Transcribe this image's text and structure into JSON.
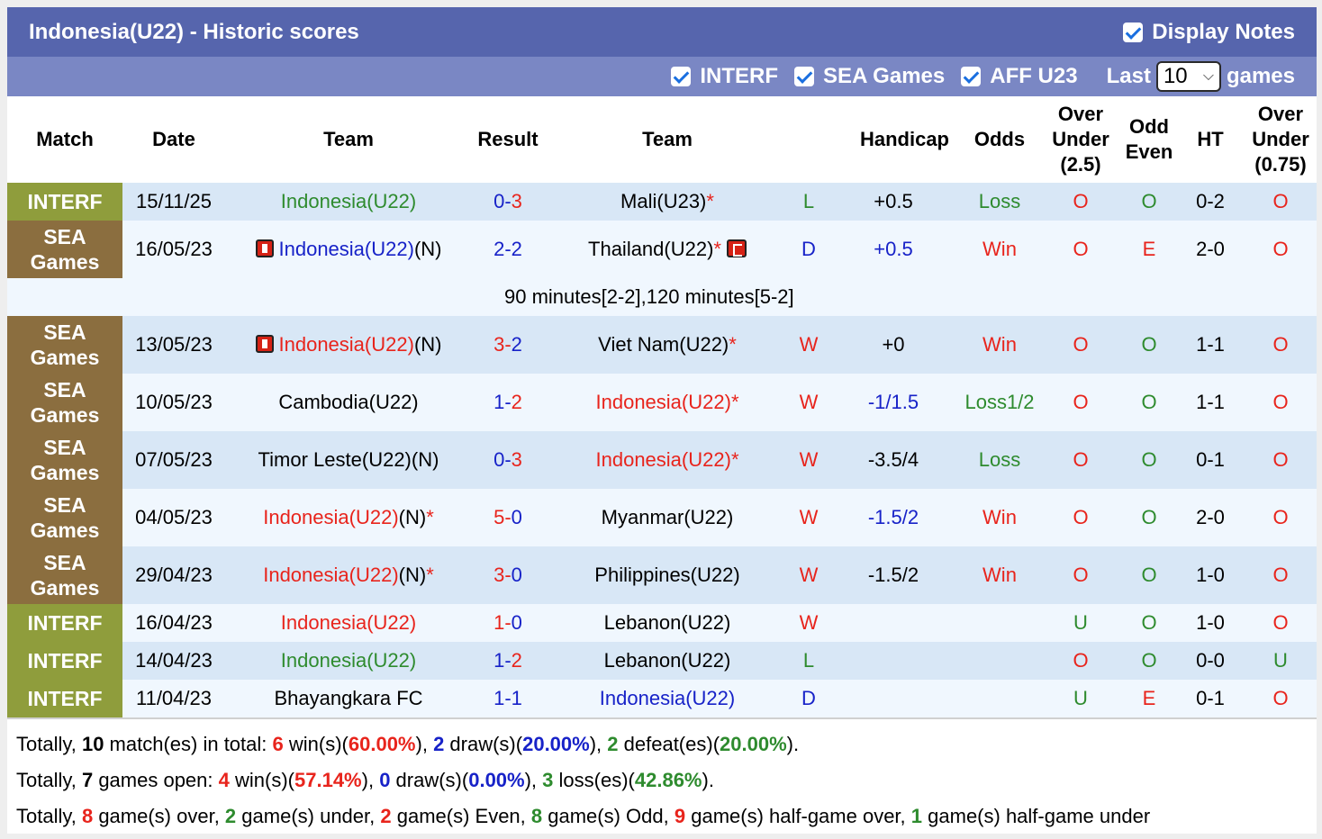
{
  "title": "Indonesia(U22) - Historic scores",
  "display_notes_label": "Display Notes",
  "filters": [
    {
      "label": "INTERF",
      "checked": true
    },
    {
      "label": "SEA Games",
      "checked": true
    },
    {
      "label": "AFF U23",
      "checked": true
    }
  ],
  "last_label": "Last",
  "last_value": "10",
  "games_label": "games",
  "headers": {
    "match": "Match",
    "date": "Date",
    "team1": "Team",
    "result": "Result",
    "team2": "Team",
    "handicap": "Handicap",
    "odds": "Odds",
    "ou1": "Over",
    "ou2": "Under",
    "ou3": "(2.5)",
    "oe1": "Odd",
    "oe2": "Even",
    "ht": "HT",
    "ou75a": "Over",
    "ou75b": "Under",
    "ou75c": "(0.75)"
  },
  "rows": [
    {
      "m1": "INTERF",
      "m2": "",
      "date": "15/11/25",
      "home": "Indonesia(U22)",
      "home_suffix": "",
      "home_star": "",
      "home_flag": false,
      "s1": "0",
      "s2": "3",
      "away": "Mali(U23)",
      "away_suffix": "",
      "away_star": "*",
      "away_flag": false,
      "wl": "L",
      "hcp": "+0.5",
      "odds": "Loss",
      "ou": "O",
      "oe": "O",
      "ht": "0-2",
      "ou75": "O"
    },
    {
      "m1": "SEA",
      "m2": "Games",
      "date": "16/05/23",
      "home": "Indonesia(U22)",
      "home_suffix": "(N)",
      "home_star": "",
      "home_flag": true,
      "s1": "2",
      "s2": "2",
      "away": "Thailand(U22)",
      "away_suffix": "",
      "away_star": "*",
      "away_flag": true,
      "wl": "D",
      "hcp": "+0.5",
      "odds": "Win",
      "ou": "O",
      "oe": "E",
      "ht": "2-0",
      "ou75": "O"
    },
    {
      "m1": "SEA",
      "m2": "Games",
      "date": "13/05/23",
      "home": "Indonesia(U22)",
      "home_suffix": "(N)",
      "home_star": "",
      "home_flag": true,
      "s1": "3",
      "s2": "2",
      "away": "Viet Nam(U22)",
      "away_suffix": "",
      "away_star": "*",
      "away_flag": false,
      "wl": "W",
      "hcp": "+0",
      "odds": "Win",
      "ou": "O",
      "oe": "O",
      "ht": "1-1",
      "ou75": "O"
    },
    {
      "m1": "SEA",
      "m2": "Games",
      "date": "10/05/23",
      "home": "Cambodia(U22)",
      "home_suffix": "",
      "home_star": "",
      "home_flag": false,
      "s1": "1",
      "s2": "2",
      "away": "Indonesia(U22)",
      "away_suffix": "",
      "away_star": "*",
      "away_flag": false,
      "wl": "W",
      "hcp": "-1/1.5",
      "odds": "Loss1/2",
      "ou": "O",
      "oe": "O",
      "ht": "1-1",
      "ou75": "O"
    },
    {
      "m1": "SEA",
      "m2": "Games",
      "date": "07/05/23",
      "home": "Timor Leste(U22)",
      "home_suffix": "(N)",
      "home_star": "",
      "home_flag": false,
      "s1": "0",
      "s2": "3",
      "away": "Indonesia(U22)",
      "away_suffix": "",
      "away_star": "*",
      "away_flag": false,
      "wl": "W",
      "hcp": "-3.5/4",
      "odds": "Loss",
      "ou": "O",
      "oe": "O",
      "ht": "0-1",
      "ou75": "O"
    },
    {
      "m1": "SEA",
      "m2": "Games",
      "date": "04/05/23",
      "home": "Indonesia(U22)",
      "home_suffix": "(N)",
      "home_star": "*",
      "home_flag": false,
      "s1": "5",
      "s2": "0",
      "away": "Myanmar(U22)",
      "away_suffix": "",
      "away_star": "",
      "away_flag": false,
      "wl": "W",
      "hcp": "-1.5/2",
      "odds": "Win",
      "ou": "O",
      "oe": "O",
      "ht": "2-0",
      "ou75": "O"
    },
    {
      "m1": "SEA",
      "m2": "Games",
      "date": "29/04/23",
      "home": "Indonesia(U22)",
      "home_suffix": "(N)",
      "home_star": "*",
      "home_flag": false,
      "s1": "3",
      "s2": "0",
      "away": "Philippines(U22)",
      "away_suffix": "",
      "away_star": "",
      "away_flag": false,
      "wl": "W",
      "hcp": "-1.5/2",
      "odds": "Win",
      "ou": "O",
      "oe": "O",
      "ht": "1-0",
      "ou75": "O"
    },
    {
      "m1": "INTERF",
      "m2": "",
      "date": "16/04/23",
      "home": "Indonesia(U22)",
      "home_suffix": "",
      "home_star": "",
      "home_flag": false,
      "s1": "1",
      "s2": "0",
      "away": "Lebanon(U22)",
      "away_suffix": "",
      "away_star": "",
      "away_flag": false,
      "wl": "W",
      "hcp": "",
      "odds": "",
      "ou": "U",
      "oe": "O",
      "ht": "1-0",
      "ou75": "O"
    },
    {
      "m1": "INTERF",
      "m2": "",
      "date": "14/04/23",
      "home": "Indonesia(U22)",
      "home_suffix": "",
      "home_star": "",
      "home_flag": false,
      "s1": "1",
      "s2": "2",
      "away": "Lebanon(U22)",
      "away_suffix": "",
      "away_star": "",
      "away_flag": false,
      "wl": "L",
      "hcp": "",
      "odds": "",
      "ou": "O",
      "oe": "O",
      "ht": "0-0",
      "ou75": "U"
    },
    {
      "m1": "INTERF",
      "m2": "",
      "date": "11/04/23",
      "home": "Bhayangkara FC",
      "home_suffix": "",
      "home_star": "",
      "home_flag": false,
      "s1": "1",
      "s2": "1",
      "away": "Indonesia(U22)",
      "away_suffix": "",
      "away_star": "",
      "away_flag": false,
      "wl": "D",
      "hcp": "",
      "odds": "",
      "ou": "U",
      "oe": "E",
      "ht": "0-1",
      "ou75": "O"
    }
  ],
  "note_after_row_2": "90 minutes[2-2],120 minutes[5-2]",
  "summary": {
    "l1": {
      "a": "Totally, ",
      "b": "10",
      "c": " match(es) in total: ",
      "d": "6",
      "e": " win(s)(",
      "f": "60.00%",
      "g": "), ",
      "h": "2",
      "i": " draw(s)(",
      "j": "20.00%",
      "k": "), ",
      "l": "2",
      "m": " defeat(es)(",
      "n": "20.00%",
      "o": ")."
    },
    "l2": {
      "a": "Totally, ",
      "b": "7",
      "c": " games open: ",
      "d": "4",
      "e": " win(s)(",
      "f": "57.14%",
      "g": "), ",
      "h": "0",
      "i": " draw(s)(",
      "j": "0.00%",
      "k": "), ",
      "l": "3",
      "m": " loss(es)(",
      "n": "42.86%",
      "o": ")."
    },
    "l3": {
      "a": "Totally, ",
      "b": "8",
      "c": " game(s) over, ",
      "d": "2",
      "e": " game(s) under, ",
      "f": "2",
      "g": " game(s) Even, ",
      "h": "8",
      "i": " game(s) Odd, ",
      "j": "9",
      "k": " game(s) half-game over, ",
      "l": "1",
      "m": " game(s) half-game under"
    }
  }
}
